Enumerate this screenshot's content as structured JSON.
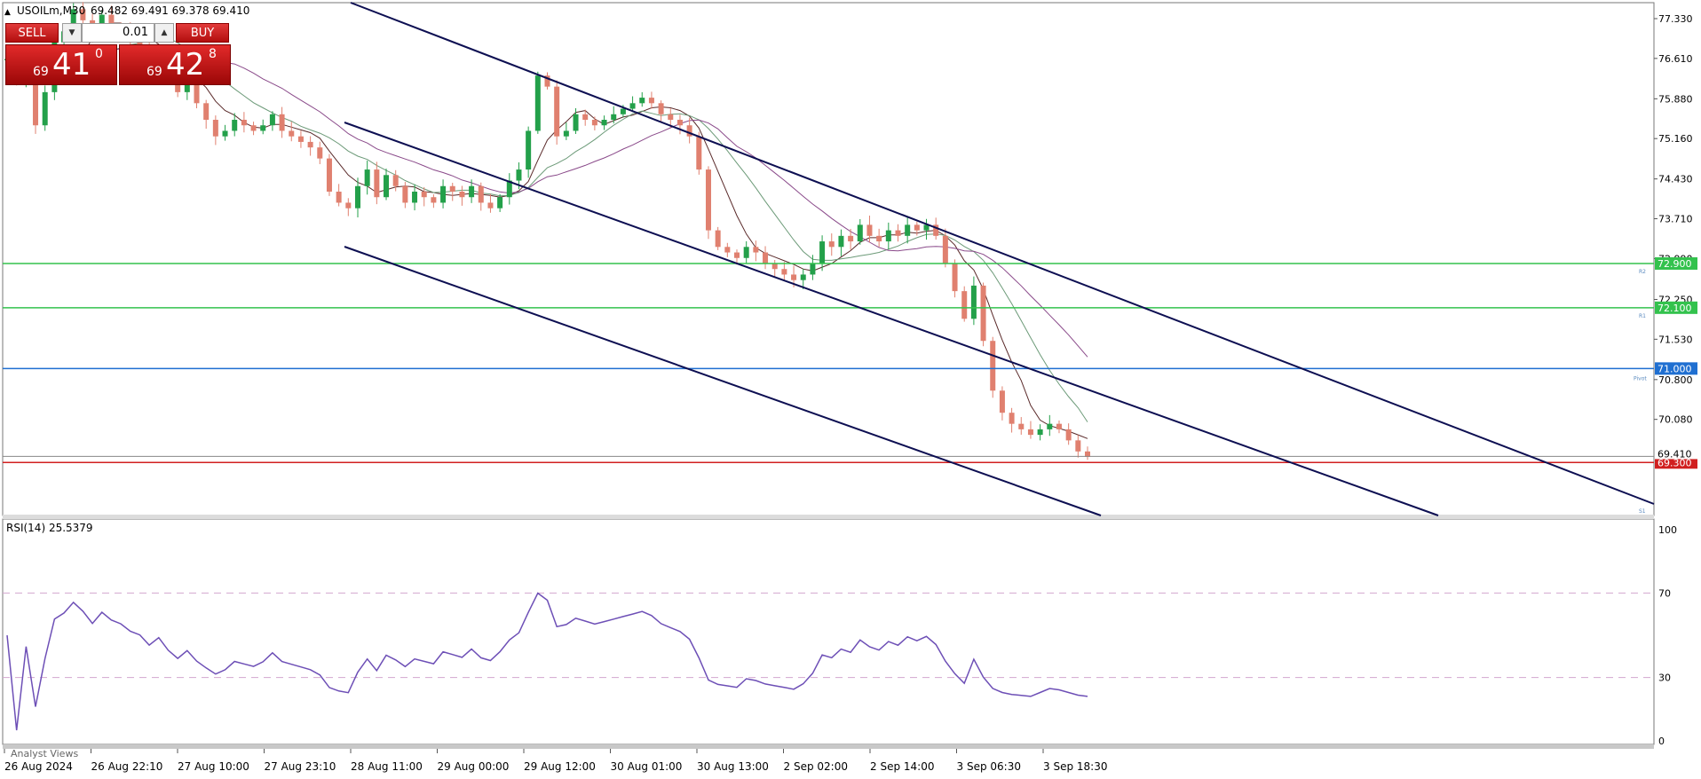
{
  "header": {
    "symbol_line": "USOILm,M30",
    "ohlc": "69.482 69.491 69.378 69.410"
  },
  "trade_panel": {
    "sell_label": "SELL",
    "buy_label": "BUY",
    "lot": "0.01",
    "bid": {
      "prefix": "69",
      "big": "41",
      "sup": "0"
    },
    "ask": {
      "prefix": "69",
      "big": "42",
      "sup": "8"
    }
  },
  "price_axis": {
    "ticks": [
      "77.330",
      "76.610",
      "75.880",
      "75.160",
      "74.430",
      "73.710",
      "72.990",
      "72.250",
      "71.530",
      "70.800",
      "70.080"
    ],
    "current_price": "69.410",
    "labels": [
      {
        "value": "72.900",
        "color": "#33c24d"
      },
      {
        "value": "72.100",
        "color": "#33c24d"
      },
      {
        "value": "71.000",
        "color": "#1f6fd1"
      },
      {
        "value": "69.300",
        "color": "#d11f1f"
      }
    ]
  },
  "level_tags": [
    "R2",
    "R1",
    "Pivot",
    "S1"
  ],
  "rsi": {
    "label": "RSI(14) 25.5379",
    "ticks": [
      "100",
      "70",
      "30",
      "0"
    ]
  },
  "time_axis": [
    "26 Aug 2024",
    "26 Aug 22:10",
    "27 Aug 10:00",
    "27 Aug 23:10",
    "28 Aug 11:00",
    "29 Aug 00:00",
    "29 Aug 12:00",
    "30 Aug 01:00",
    "30 Aug 13:00",
    "2 Sep 02:00",
    "2 Sep 14:00",
    "3 Sep 06:30",
    "3 Sep 18:30"
  ],
  "bottom_tab": "Analyst Views",
  "colors": {
    "bull": "#23a04a",
    "bear": "#e0806f",
    "channel": "#0d0f52",
    "rsi_line": "#6d4fb6",
    "rsi_levels": "#d3a6cf",
    "ma_dark": "#5a2a2a",
    "ma_green": "#6c9a78",
    "ma_purple": "#8a4a8a"
  },
  "chart_data": {
    "type": "candlestick",
    "symbol": "USOILm",
    "timeframe": "M30",
    "ylim": [
      69.0,
      77.6
    ],
    "close_path": [
      76.6,
      76.2,
      76.5,
      75.4,
      76.0,
      76.9,
      77.1,
      77.5,
      77.3,
      77.0,
      77.4,
      77.2,
      77.1,
      76.9,
      76.8,
      76.5,
      76.7,
      76.3,
      76.0,
      76.2,
      75.8,
      75.5,
      75.2,
      75.3,
      75.5,
      75.4,
      75.3,
      75.4,
      75.6,
      75.3,
      75.2,
      75.1,
      75.0,
      74.8,
      74.2,
      74.0,
      73.9,
      74.3,
      74.6,
      74.1,
      74.5,
      74.3,
      74.0,
      74.2,
      74.1,
      74.0,
      74.3,
      74.2,
      74.1,
      74.3,
      74.0,
      73.9,
      74.1,
      74.4,
      74.6,
      75.3,
      76.3,
      76.1,
      75.2,
      75.3,
      75.6,
      75.5,
      75.4,
      75.5,
      75.6,
      75.7,
      75.8,
      75.9,
      75.8,
      75.6,
      75.5,
      75.4,
      75.2,
      74.6,
      73.5,
      73.2,
      73.1,
      73.0,
      73.2,
      73.1,
      72.9,
      72.8,
      72.7,
      72.6,
      72.7,
      72.9,
      73.3,
      73.2,
      73.4,
      73.3,
      73.6,
      73.4,
      73.3,
      73.5,
      73.4,
      73.6,
      73.5,
      73.6,
      73.4,
      72.9,
      72.4,
      71.9,
      72.5,
      71.5,
      70.6,
      70.2,
      70.0,
      69.9,
      69.8,
      69.9,
      70.0,
      69.9,
      69.7,
      69.5,
      69.4
    ]
  }
}
